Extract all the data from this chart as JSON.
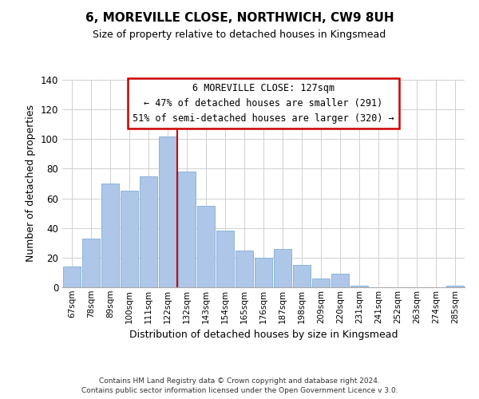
{
  "title": "6, MOREVILLE CLOSE, NORTHWICH, CW9 8UH",
  "subtitle": "Size of property relative to detached houses in Kingsmead",
  "xlabel": "Distribution of detached houses by size in Kingsmead",
  "ylabel": "Number of detached properties",
  "bar_color": "#aec6e8",
  "bar_edgecolor": "#8ab4d8",
  "categories": [
    "67sqm",
    "78sqm",
    "89sqm",
    "100sqm",
    "111sqm",
    "122sqm",
    "132sqm",
    "143sqm",
    "154sqm",
    "165sqm",
    "176sqm",
    "187sqm",
    "198sqm",
    "209sqm",
    "220sqm",
    "231sqm",
    "241sqm",
    "252sqm",
    "263sqm",
    "274sqm",
    "285sqm"
  ],
  "values": [
    14,
    33,
    70,
    65,
    75,
    102,
    78,
    55,
    38,
    25,
    20,
    26,
    15,
    6,
    9,
    1,
    0,
    0,
    0,
    0,
    1
  ],
  "ylim": [
    0,
    140
  ],
  "yticks": [
    0,
    20,
    40,
    60,
    80,
    100,
    120,
    140
  ],
  "vline_x": 5.5,
  "vline_color": "#cc0000",
  "annotation_title": "6 MOREVILLE CLOSE: 127sqm",
  "annotation_line1": "← 47% of detached houses are smaller (291)",
  "annotation_line2": "51% of semi-detached houses are larger (320) →",
  "annotation_box_color": "#ffffff",
  "annotation_box_edgecolor": "#cc0000",
  "footer1": "Contains HM Land Registry data © Crown copyright and database right 2024.",
  "footer2": "Contains public sector information licensed under the Open Government Licence v 3.0.",
  "background_color": "#ffffff",
  "grid_color": "#d0d0d0"
}
